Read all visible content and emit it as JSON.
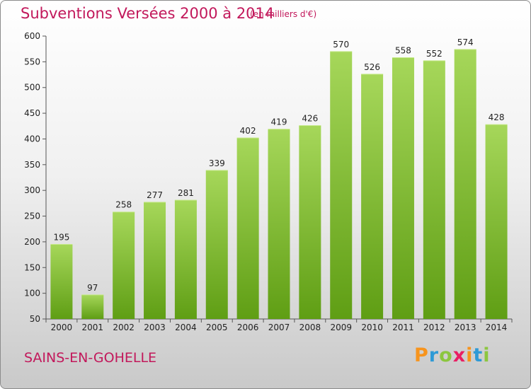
{
  "title": "Subventions Versées 2000 à 2014",
  "unit_note": "(en milliers d'€)",
  "commune": "SAINS-EN-GOHELLE",
  "logo": {
    "letters": [
      "P",
      "r",
      "o",
      "x",
      "i",
      "t",
      "i"
    ],
    "colors": [
      "#f7941d",
      "#2e9ad6",
      "#8cc63f",
      "#e91e63",
      "#f7941d",
      "#2e9ad6",
      "#8cc63f"
    ]
  },
  "colors": {
    "bar_light": "#a6d75a",
    "bar_dark": "#5f9e14",
    "title": "#c2185b"
  },
  "chart_data": {
    "type": "bar",
    "title": "Subventions Versées 2000 à 2014",
    "subtitle": "(en milliers d'€)",
    "categories": [
      "2000",
      "2001",
      "2002",
      "2003",
      "2004",
      "2005",
      "2006",
      "2007",
      "2008",
      "2009",
      "2010",
      "2011",
      "2012",
      "2013",
      "2014"
    ],
    "values": [
      195,
      97,
      258,
      277,
      281,
      339,
      402,
      419,
      426,
      570,
      526,
      558,
      552,
      574,
      428
    ],
    "ylim": [
      50,
      600
    ],
    "yticks": [
      50,
      100,
      150,
      200,
      250,
      300,
      350,
      400,
      450,
      500,
      550,
      600
    ],
    "grid": false,
    "legend": "none"
  }
}
